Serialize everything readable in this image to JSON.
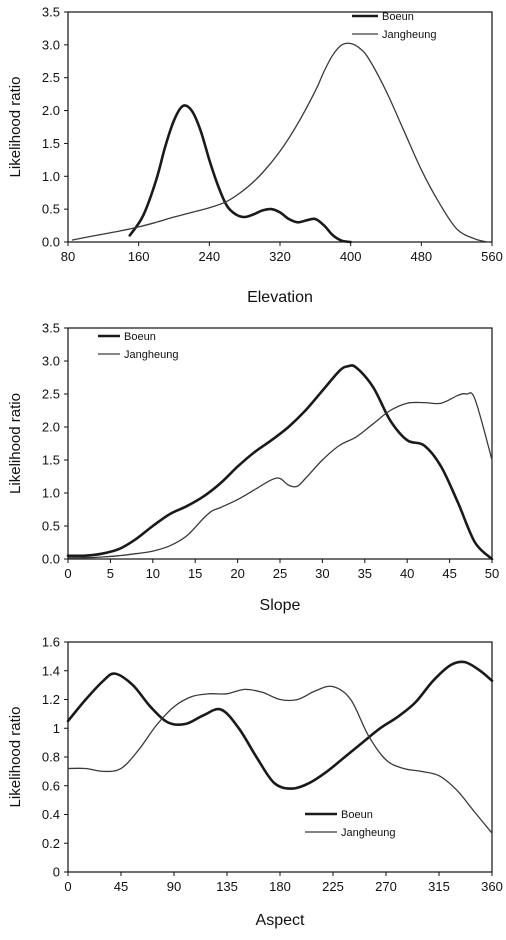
{
  "colors": {
    "boeun": "#1a1a1a",
    "jangheung": "#3a3a3a",
    "axis": "#111111"
  },
  "chart_data": [
    {
      "type": "line",
      "xlabel": "Elevation",
      "ylabel": "Likelihood ratio",
      "xlim": [
        80,
        560
      ],
      "ylim": [
        0,
        3.5
      ],
      "xticks": [
        80,
        160,
        240,
        320,
        400,
        480,
        560
      ],
      "yticks": [
        0.0,
        0.5,
        1.0,
        1.5,
        2.0,
        2.5,
        3.0,
        3.5
      ],
      "ytick_format": "fixed1",
      "legend": "top-right",
      "grid": false,
      "series": [
        {
          "name": "Boeun",
          "x": [
            150,
            165,
            180,
            190,
            200,
            210,
            220,
            230,
            240,
            250,
            260,
            270,
            280,
            290,
            300,
            310,
            320,
            330,
            340,
            350,
            360,
            370,
            380,
            390,
            400
          ],
          "y": [
            0.1,
            0.4,
            0.95,
            1.45,
            1.85,
            2.07,
            2.0,
            1.7,
            1.25,
            0.85,
            0.55,
            0.42,
            0.38,
            0.42,
            0.48,
            0.5,
            0.45,
            0.35,
            0.3,
            0.33,
            0.35,
            0.25,
            0.1,
            0.02,
            0.0
          ]
        },
        {
          "name": "Jangheung",
          "x": [
            85,
            100,
            120,
            140,
            160,
            180,
            200,
            220,
            240,
            260,
            280,
            300,
            320,
            340,
            360,
            370,
            380,
            390,
            400,
            410,
            420,
            440,
            460,
            480,
            500,
            520,
            540,
            555
          ],
          "y": [
            0.03,
            0.07,
            0.12,
            0.17,
            0.23,
            0.3,
            0.38,
            0.45,
            0.52,
            0.62,
            0.8,
            1.05,
            1.38,
            1.8,
            2.3,
            2.6,
            2.85,
            3.0,
            3.02,
            2.95,
            2.8,
            2.3,
            1.7,
            1.1,
            0.6,
            0.2,
            0.05,
            0.0
          ]
        }
      ]
    },
    {
      "type": "line",
      "xlabel": "Slope",
      "ylabel": "Likelihood ratio",
      "xlim": [
        0,
        50
      ],
      "ylim": [
        0,
        3.5
      ],
      "xticks": [
        0,
        5,
        10,
        15,
        20,
        25,
        30,
        35,
        40,
        45,
        50
      ],
      "yticks": [
        0.0,
        0.5,
        1.0,
        1.5,
        2.0,
        2.5,
        3.0,
        3.5
      ],
      "ytick_format": "fixed1",
      "legend": "top-left",
      "grid": false,
      "series": [
        {
          "name": "Boeun",
          "x": [
            0,
            2,
            4,
            6,
            8,
            10,
            12,
            14,
            16,
            18,
            20,
            22,
            24,
            26,
            28,
            30,
            32,
            33,
            34,
            36,
            38,
            40,
            42,
            44,
            46,
            48,
            50
          ],
          "y": [
            0.05,
            0.05,
            0.08,
            0.15,
            0.3,
            0.5,
            0.68,
            0.8,
            0.95,
            1.15,
            1.4,
            1.62,
            1.8,
            2.0,
            2.25,
            2.55,
            2.85,
            2.92,
            2.9,
            2.6,
            2.1,
            1.8,
            1.72,
            1.4,
            0.85,
            0.25,
            0.0
          ]
        },
        {
          "name": "Jangheung",
          "x": [
            0,
            2,
            4,
            6,
            8,
            10,
            12,
            14,
            16,
            17,
            18,
            20,
            22,
            24,
            25,
            26,
            27,
            28,
            30,
            32,
            34,
            36,
            38,
            40,
            42,
            44,
            46,
            47,
            48,
            50
          ],
          "y": [
            0.02,
            0.02,
            0.03,
            0.05,
            0.08,
            0.12,
            0.2,
            0.35,
            0.62,
            0.73,
            0.78,
            0.9,
            1.05,
            1.2,
            1.22,
            1.12,
            1.1,
            1.22,
            1.5,
            1.72,
            1.85,
            2.05,
            2.25,
            2.36,
            2.37,
            2.36,
            2.48,
            2.5,
            2.42,
            1.5
          ]
        }
      ]
    },
    {
      "type": "line",
      "xlabel": "Aspect",
      "ylabel": "Likelihood ratio",
      "xlim": [
        0,
        360
      ],
      "ylim": [
        0,
        1.6
      ],
      "xticks": [
        0,
        45,
        90,
        135,
        180,
        225,
        270,
        315,
        360
      ],
      "yticks": [
        0,
        0.2,
        0.4,
        0.6,
        0.8,
        1,
        1.2,
        1.4,
        1.6
      ],
      "ytick_format": "auto",
      "legend": "bottom-right",
      "grid": false,
      "series": [
        {
          "name": "Boeun",
          "x": [
            0,
            15,
            30,
            40,
            55,
            70,
            85,
            100,
            115,
            130,
            145,
            160,
            175,
            190,
            205,
            220,
            235,
            250,
            265,
            280,
            295,
            310,
            325,
            337,
            350,
            360
          ],
          "y": [
            1.05,
            1.2,
            1.33,
            1.38,
            1.3,
            1.15,
            1.04,
            1.03,
            1.09,
            1.13,
            1.0,
            0.8,
            0.62,
            0.58,
            0.62,
            0.7,
            0.8,
            0.9,
            1.0,
            1.08,
            1.18,
            1.33,
            1.44,
            1.46,
            1.4,
            1.33
          ]
        },
        {
          "name": "Jangheung",
          "x": [
            0,
            15,
            30,
            45,
            60,
            75,
            90,
            105,
            120,
            135,
            150,
            165,
            180,
            195,
            210,
            225,
            240,
            255,
            270,
            285,
            300,
            315,
            330,
            345,
            360
          ],
          "y": [
            0.72,
            0.72,
            0.7,
            0.72,
            0.85,
            1.02,
            1.15,
            1.22,
            1.24,
            1.24,
            1.27,
            1.25,
            1.2,
            1.2,
            1.26,
            1.29,
            1.2,
            0.95,
            0.78,
            0.72,
            0.7,
            0.67,
            0.57,
            0.42,
            0.27
          ]
        }
      ]
    }
  ]
}
